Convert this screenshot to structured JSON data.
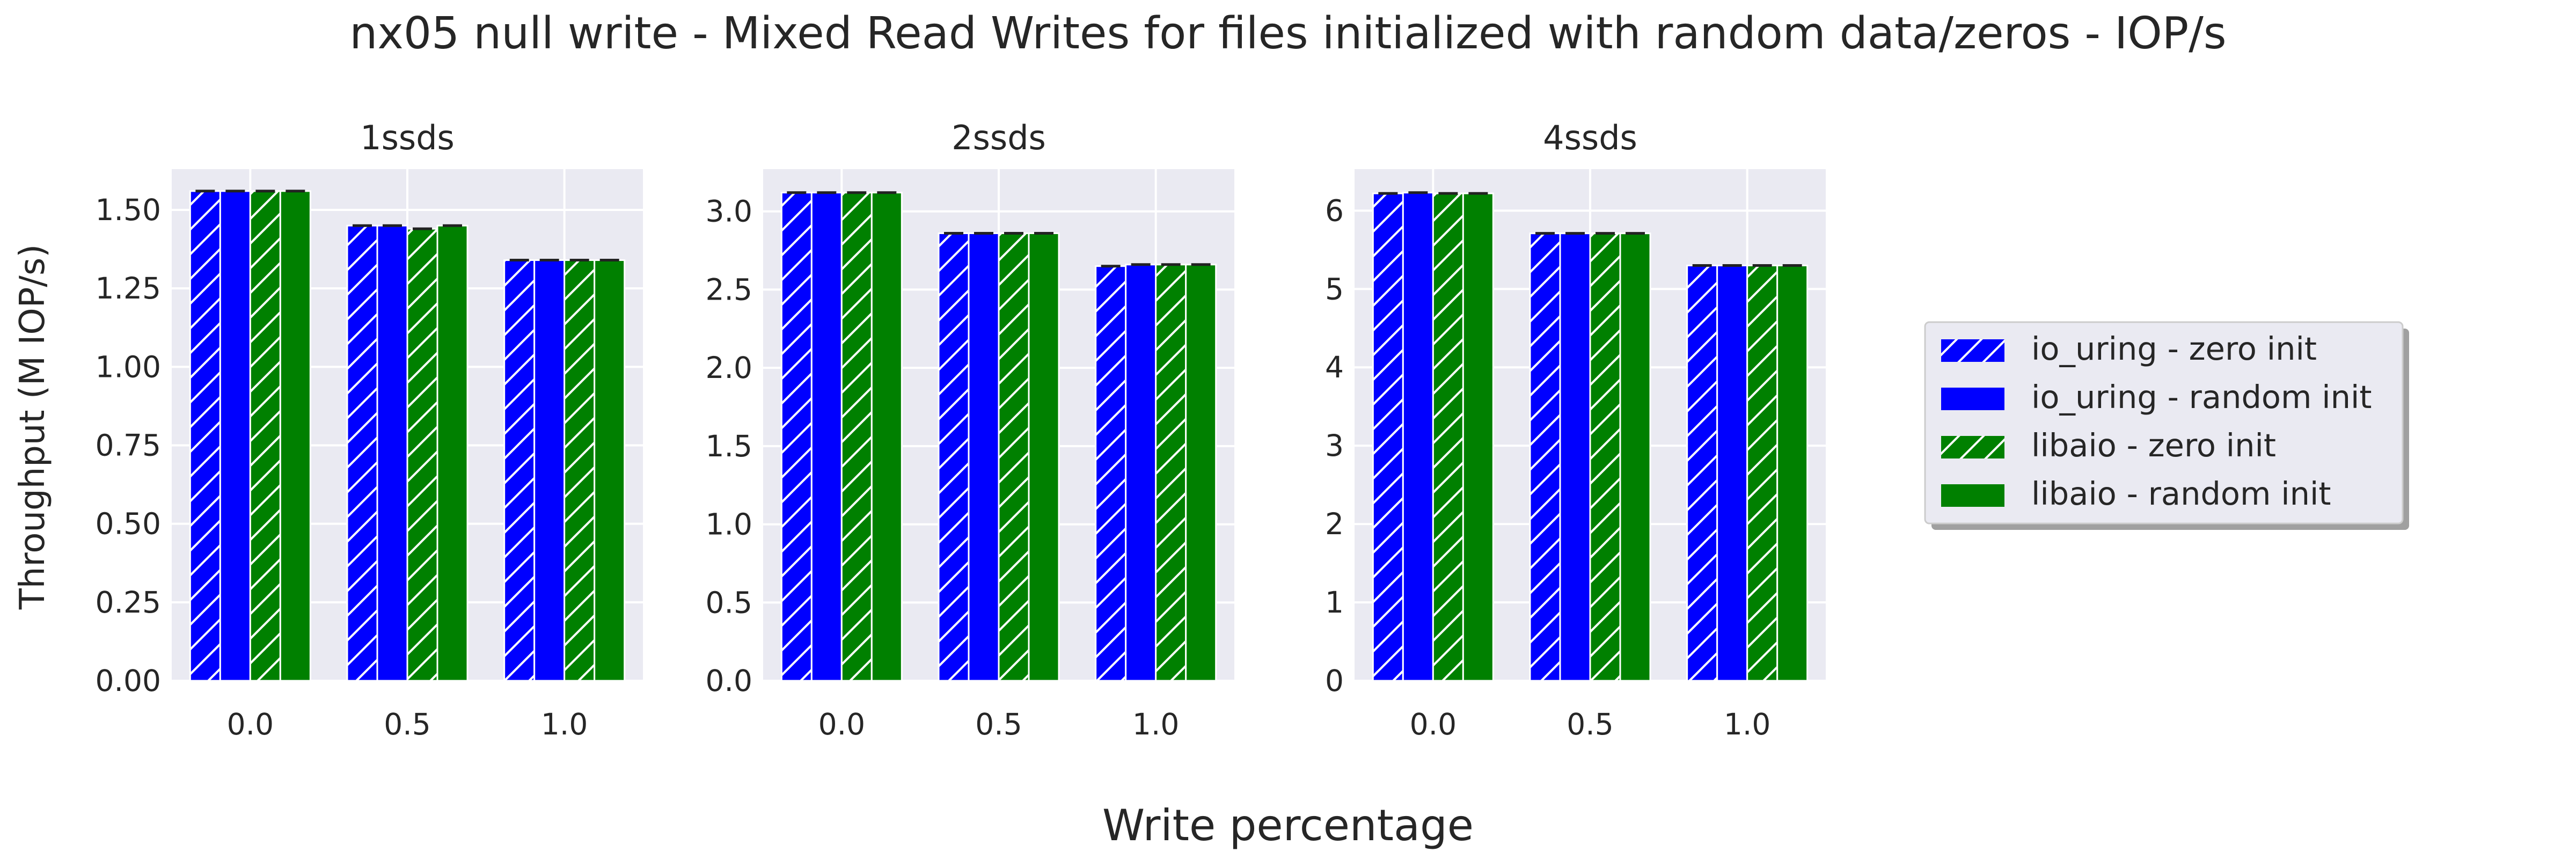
{
  "figure": {
    "title": "nx05 null write - Mixed Read Writes for files initialized with random data/zeros - IOP/s",
    "xlabel": "Write percentage",
    "ylabel": "Throughput (M IOP/s)"
  },
  "legend": {
    "placement": "right",
    "entries": [
      {
        "label": "io_uring - zero init",
        "color": "#0000ff",
        "hatch": true
      },
      {
        "label": "io_uring - random init",
        "color": "#0000ff",
        "hatch": false
      },
      {
        "label": "libaio - zero init",
        "color": "#008000",
        "hatch": true
      },
      {
        "label": "libaio - random init",
        "color": "#008000",
        "hatch": false
      }
    ]
  },
  "chart_data": [
    {
      "type": "bar",
      "title": "1ssds",
      "categories": [
        "0.0",
        "0.5",
        "1.0"
      ],
      "ylim": [
        0,
        1.63
      ],
      "yticks": [
        "0.00",
        "0.25",
        "0.50",
        "0.75",
        "1.00",
        "1.25",
        "1.50"
      ],
      "grid": true,
      "series": [
        {
          "name": "io_uring - zero init",
          "values": [
            1.56,
            1.45,
            1.34
          ]
        },
        {
          "name": "io_uring - random init",
          "values": [
            1.56,
            1.45,
            1.34
          ]
        },
        {
          "name": "libaio - zero init",
          "values": [
            1.56,
            1.44,
            1.34
          ]
        },
        {
          "name": "libaio - random init",
          "values": [
            1.56,
            1.45,
            1.34
          ]
        }
      ]
    },
    {
      "type": "bar",
      "title": "2ssds",
      "categories": [
        "0.0",
        "0.5",
        "1.0"
      ],
      "ylim": [
        0,
        3.27
      ],
      "yticks": [
        "0.0",
        "0.5",
        "1.0",
        "1.5",
        "2.0",
        "2.5",
        "3.0"
      ],
      "grid": true,
      "series": [
        {
          "name": "io_uring - zero init",
          "values": [
            3.12,
            2.86,
            2.65
          ]
        },
        {
          "name": "io_uring - random init",
          "values": [
            3.12,
            2.86,
            2.66
          ]
        },
        {
          "name": "libaio - zero init",
          "values": [
            3.12,
            2.86,
            2.66
          ]
        },
        {
          "name": "libaio - random init",
          "values": [
            3.12,
            2.86,
            2.66
          ]
        }
      ]
    },
    {
      "type": "bar",
      "title": "4ssds",
      "categories": [
        "0.0",
        "0.5",
        "1.0"
      ],
      "ylim": [
        0,
        6.53
      ],
      "yticks": [
        "0",
        "1",
        "2",
        "3",
        "4",
        "5",
        "6"
      ],
      "grid": true,
      "series": [
        {
          "name": "io_uring - zero init",
          "values": [
            6.22,
            5.71,
            5.3
          ]
        },
        {
          "name": "io_uring - random init",
          "values": [
            6.23,
            5.71,
            5.3
          ]
        },
        {
          "name": "libaio - zero init",
          "values": [
            6.22,
            5.71,
            5.3
          ]
        },
        {
          "name": "libaio - random init",
          "values": [
            6.22,
            5.71,
            5.3
          ]
        }
      ]
    }
  ]
}
